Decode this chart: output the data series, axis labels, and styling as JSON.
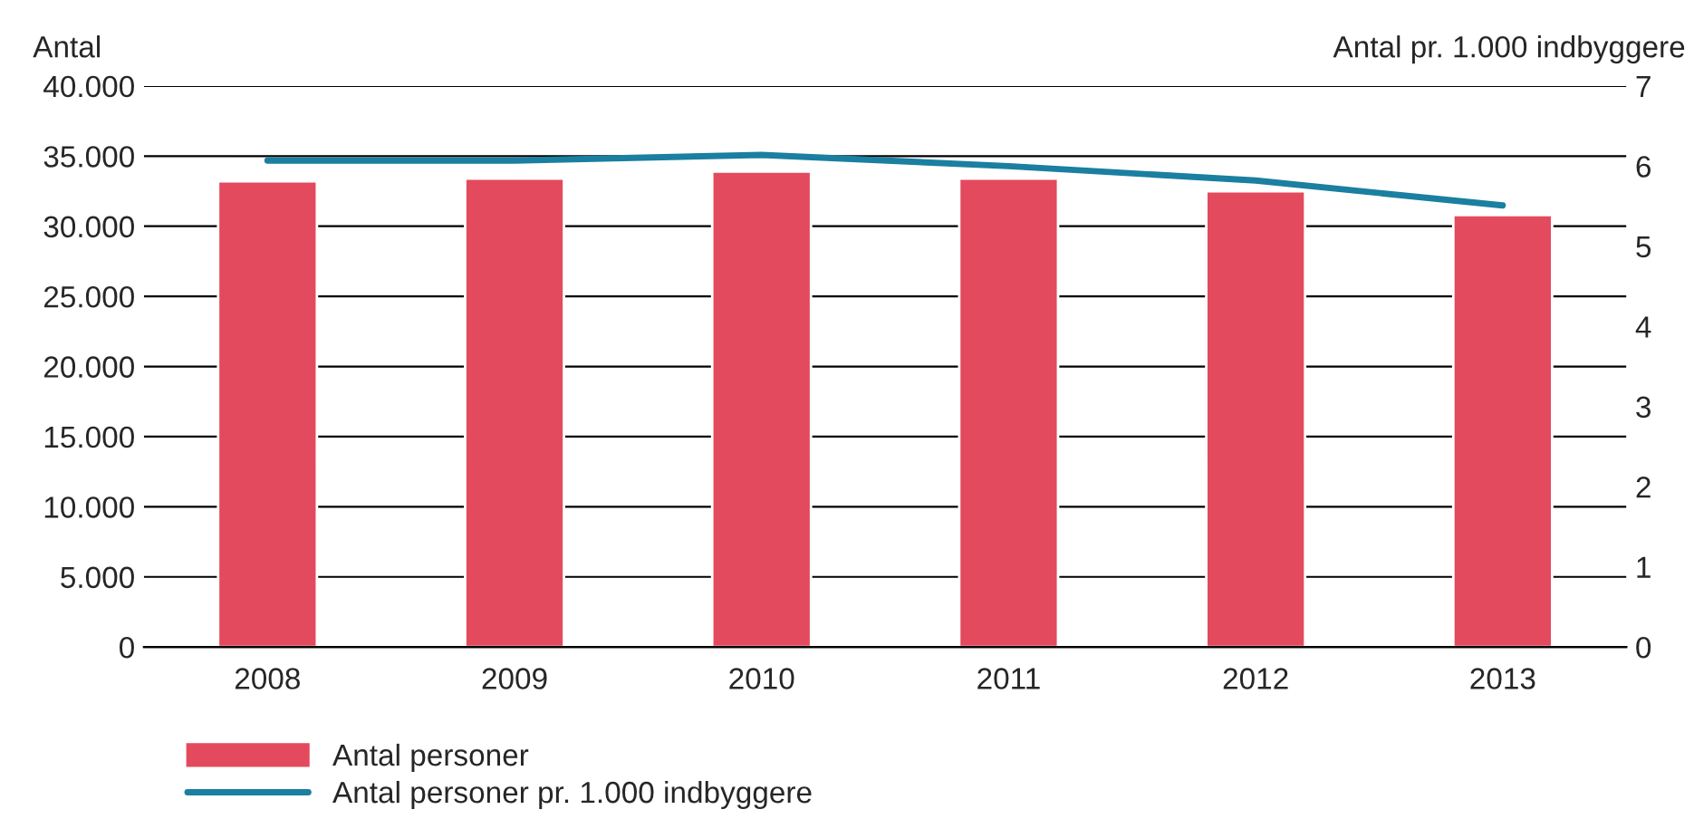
{
  "chart_data": {
    "type": "bar",
    "ylabel": "Antal",
    "y2label": "Antal pr. 1.000 indbyggere",
    "categories": [
      "2008",
      "2009",
      "2010",
      "2011",
      "2012",
      "2013"
    ],
    "series": [
      {
        "name": "Antal personer",
        "color": "#e34a5e",
        "values": [
          33200,
          33400,
          33900,
          33400,
          32500,
          30800
        ]
      },
      {
        "name": "Antal personer pr. 1.000 indbyggere",
        "type": "line",
        "axis": "y2",
        "color": "#1a7fa0",
        "values": [
          6.07,
          6.07,
          6.14,
          6.0,
          5.82,
          5.51
        ]
      }
    ],
    "ylim": [
      0,
      40000
    ],
    "yticks": [
      0,
      {
        "value": 5000,
        "label": "5.000"
      },
      {
        "value": 10000,
        "label": "10.000"
      },
      {
        "value": 15000,
        "label": "15.000"
      },
      {
        "value": 20000,
        "label": "20.000"
      },
      {
        "value": 25000,
        "label": "25.000"
      },
      {
        "value": 30000,
        "label": "30.000"
      },
      {
        "value": 35000,
        "label": "35.000"
      },
      {
        "value": 40000,
        "label": "40.000"
      }
    ],
    "y2lim": [
      0,
      7
    ],
    "y2ticks": [
      0,
      1,
      2,
      3,
      4,
      5,
      6,
      7
    ],
    "grid": "y",
    "legend": "bottom left",
    "marker": "none",
    "line_style": "solid"
  }
}
